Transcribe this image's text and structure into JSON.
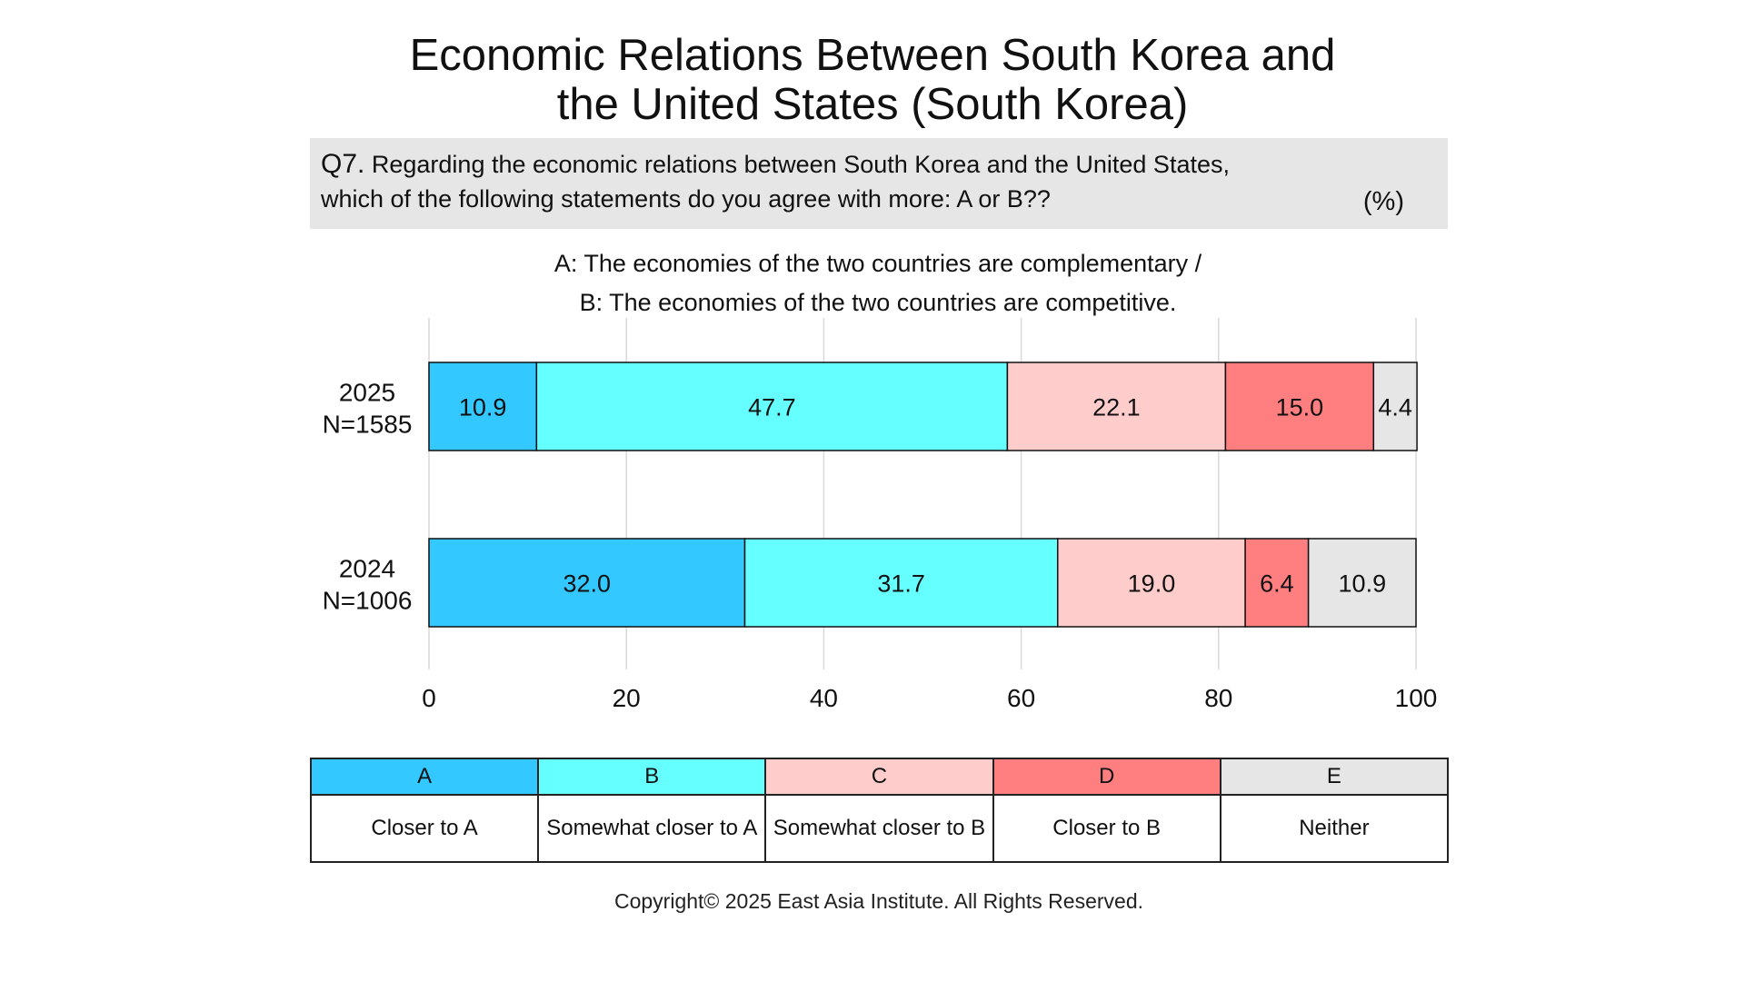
{
  "title_line1": "Economic Relations Between South Korea and",
  "title_line2": "the United States (South Korea)",
  "question": {
    "label": "Q7.",
    "line1": "Regarding the economic relations between South Korea and the United States,",
    "line2": "which of the following statements do you agree with more: A or B??",
    "unit": "(%)"
  },
  "subtitle_line1": "A: The economies of the two countries are complementary /",
  "subtitle_line2": "B: The economies of the two countries are competitive.",
  "legend": [
    {
      "code": "A",
      "label": "Closer to A",
      "color": "#33c8ff"
    },
    {
      "code": "B",
      "label": "Somewhat closer to A",
      "color": "#66ffff"
    },
    {
      "code": "C",
      "label": "Somewhat closer to B",
      "color": "#ffcccc"
    },
    {
      "code": "D",
      "label": "Closer to B",
      "color": "#ff7f80"
    },
    {
      "code": "E",
      "label": "Neither",
      "color": "#e6e6e6"
    }
  ],
  "copyright": "Copyright© 2025 East Asia Institute. All Rights Reserved.",
  "chart_data": {
    "type": "bar",
    "orientation": "horizontal",
    "stacked": true,
    "categories": [
      {
        "year": "2025",
        "n": "N=1585"
      },
      {
        "year": "2024",
        "n": "N=1006"
      }
    ],
    "series": [
      {
        "name": "A",
        "color": "#33c8ff",
        "values": [
          10.9,
          32.0
        ],
        "labels": [
          "10.9",
          "32.0"
        ]
      },
      {
        "name": "B",
        "color": "#66ffff",
        "values": [
          47.7,
          31.7
        ],
        "labels": [
          "47.7",
          "31.7"
        ]
      },
      {
        "name": "C",
        "color": "#ffcccc",
        "values": [
          22.1,
          19.0
        ],
        "labels": [
          "22.1",
          "19.0"
        ]
      },
      {
        "name": "D",
        "color": "#ff7f80",
        "values": [
          15.0,
          6.4
        ],
        "labels": [
          "15.0",
          "6.4"
        ]
      },
      {
        "name": "E",
        "color": "#e6e6e6",
        "values": [
          4.4,
          10.9
        ],
        "labels": [
          "4.4",
          "10.9"
        ]
      }
    ],
    "xlim": [
      0,
      100
    ],
    "xticks": [
      "0",
      "20",
      "40",
      "60",
      "80",
      "100"
    ],
    "grid": true
  }
}
